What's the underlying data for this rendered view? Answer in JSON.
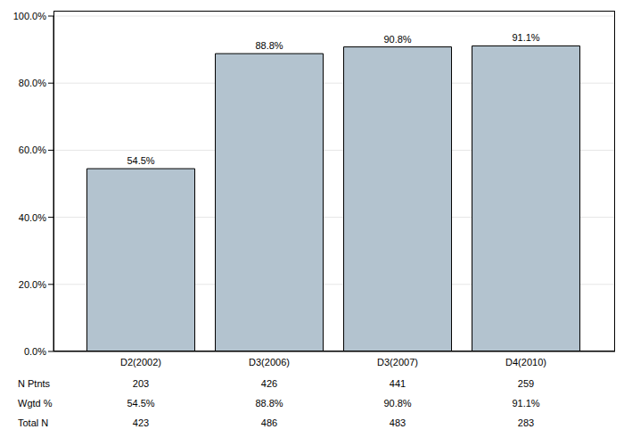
{
  "chart_data": {
    "type": "bar",
    "categories": [
      "D2(2002)",
      "D3(2006)",
      "D3(2007)",
      "D4(2010)"
    ],
    "values": [
      54.5,
      88.8,
      90.8,
      91.1
    ],
    "value_labels": [
      "54.5%",
      "88.8%",
      "90.8%",
      "91.1%"
    ],
    "data_labels": true,
    "color": "#b3c3cf",
    "ylim": [
      0,
      100
    ],
    "yticks": [
      {
        "value": 0,
        "label": "0.0%"
      },
      {
        "value": 20,
        "label": "20.0%"
      },
      {
        "value": 40,
        "label": "40.0%"
      },
      {
        "value": 60,
        "label": "60.0%"
      },
      {
        "value": 80,
        "label": "80.0%"
      },
      {
        "value": 100,
        "label": "100.0%"
      }
    ],
    "grid": true,
    "table": {
      "rows": [
        {
          "label": "N Ptnts",
          "values": [
            203,
            426,
            441,
            259
          ]
        },
        {
          "label": "Wgtd %",
          "values": [
            54.5,
            88.8,
            90.8,
            91.1
          ],
          "value_labels": [
            "54.5%",
            "88.8%",
            "90.8%",
            "91.1%"
          ]
        },
        {
          "label": "Total N",
          "values": [
            423,
            486,
            483,
            283
          ]
        }
      ]
    }
  }
}
